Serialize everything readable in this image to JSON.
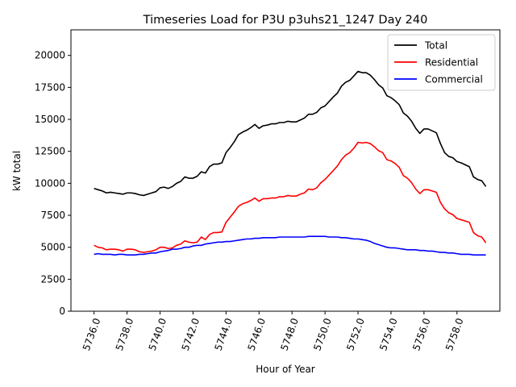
{
  "chart_data": {
    "type": "line",
    "title": "Timeseries Load for P3U p3uhs21_1247  Day 240",
    "xlabel": "Hour of Year",
    "ylabel": "kW total",
    "xlim": [
      5734.6,
      5760.6
    ],
    "ylim": [
      0,
      22000
    ],
    "xticks": [
      5736,
      5738,
      5740,
      5742,
      5744,
      5746,
      5748,
      5750,
      5752,
      5754,
      5756,
      5758
    ],
    "xtick_labels": [
      "5736.0",
      "5738.0",
      "5740.0",
      "5742.0",
      "5744.0",
      "5746.0",
      "5748.0",
      "5750.0",
      "5752.0",
      "5754.0",
      "5756.0",
      "5758.0"
    ],
    "yticks": [
      0,
      2500,
      5000,
      7500,
      10000,
      12500,
      15000,
      17500,
      20000
    ],
    "ytick_labels": [
      "0",
      "2500",
      "5000",
      "7500",
      "10000",
      "12500",
      "15000",
      "17500",
      "20000"
    ],
    "legend_position": "top-right",
    "x": [
      5736.0,
      5736.25,
      5736.5,
      5736.75,
      5737.0,
      5737.25,
      5737.5,
      5737.75,
      5738.0,
      5738.25,
      5738.5,
      5738.75,
      5739.0,
      5739.25,
      5739.5,
      5739.75,
      5740.0,
      5740.25,
      5740.5,
      5740.75,
      5741.0,
      5741.25,
      5741.5,
      5741.75,
      5742.0,
      5742.25,
      5742.5,
      5742.75,
      5743.0,
      5743.25,
      5743.5,
      5743.75,
      5744.0,
      5744.25,
      5744.5,
      5744.75,
      5745.0,
      5745.25,
      5745.5,
      5745.75,
      5746.0,
      5746.25,
      5746.5,
      5746.75,
      5747.0,
      5747.25,
      5747.5,
      5747.75,
      5748.0,
      5748.25,
      5748.5,
      5748.75,
      5749.0,
      5749.25,
      5749.5,
      5749.75,
      5750.0,
      5750.25,
      5750.5,
      5750.75,
      5751.0,
      5751.25,
      5751.5,
      5751.75,
      5752.0,
      5752.25,
      5752.5,
      5752.75,
      5753.0,
      5753.25,
      5753.5,
      5753.75,
      5754.0,
      5754.25,
      5754.5,
      5754.75,
      5755.0,
      5755.25,
      5755.5,
      5755.75,
      5756.0,
      5756.25,
      5756.5,
      5756.75,
      5757.0,
      5757.25,
      5757.5,
      5757.75,
      5758.0,
      5758.25,
      5758.5,
      5758.75,
      5759.0,
      5759.25,
      5759.5,
      5759.75
    ],
    "series": [
      {
        "name": "Total",
        "color": "#000000",
        "values": [
          9600,
          9500,
          9400,
          9250,
          9300,
          9250,
          9200,
          9150,
          9250,
          9250,
          9200,
          9100,
          9050,
          9150,
          9250,
          9350,
          9650,
          9700,
          9600,
          9750,
          10000,
          10150,
          10500,
          10400,
          10400,
          10550,
          10900,
          10800,
          11300,
          11500,
          11500,
          11600,
          12400,
          12800,
          13250,
          13800,
          14000,
          14150,
          14350,
          14600,
          14300,
          14500,
          14550,
          14650,
          14650,
          14750,
          14750,
          14850,
          14800,
          14800,
          14950,
          15100,
          15400,
          15400,
          15550,
          15900,
          16050,
          16400,
          16750,
          17050,
          17600,
          17900,
          18050,
          18400,
          18750,
          18650,
          18650,
          18450,
          18100,
          17700,
          17450,
          16850,
          16700,
          16450,
          16150,
          15500,
          15250,
          14850,
          14300,
          13900,
          14250,
          14250,
          14100,
          13950,
          13100,
          12400,
          12100,
          12000,
          11700,
          11600,
          11450,
          11300,
          10500,
          10300,
          10200,
          9750
        ]
      },
      {
        "name": "Residential",
        "color": "#ff0000",
        "values": [
          5150,
          5000,
          4950,
          4800,
          4850,
          4850,
          4800,
          4700,
          4850,
          4850,
          4800,
          4650,
          4600,
          4650,
          4700,
          4800,
          5000,
          5000,
          4900,
          4950,
          5150,
          5250,
          5500,
          5400,
          5350,
          5400,
          5800,
          5600,
          6000,
          6150,
          6150,
          6200,
          6950,
          7350,
          7750,
          8200,
          8400,
          8500,
          8650,
          8850,
          8600,
          8800,
          8800,
          8850,
          8850,
          8950,
          8950,
          9050,
          9000,
          9000,
          9150,
          9250,
          9550,
          9500,
          9650,
          10050,
          10300,
          10650,
          11000,
          11350,
          11850,
          12200,
          12400,
          12750,
          13200,
          13150,
          13200,
          13100,
          12850,
          12550,
          12400,
          11850,
          11750,
          11550,
          11250,
          10600,
          10400,
          10050,
          9550,
          9200,
          9500,
          9500,
          9400,
          9300,
          8500,
          8000,
          7700,
          7550,
          7250,
          7150,
          7050,
          6950,
          6150,
          5900,
          5800,
          5350
        ]
      },
      {
        "name": "Commercial",
        "color": "#0000ff",
        "values": [
          4450,
          4500,
          4450,
          4450,
          4450,
          4400,
          4450,
          4450,
          4400,
          4400,
          4400,
          4450,
          4450,
          4500,
          4550,
          4550,
          4650,
          4700,
          4750,
          4850,
          4850,
          4900,
          5000,
          5000,
          5100,
          5150,
          5150,
          5250,
          5300,
          5350,
          5400,
          5400,
          5450,
          5450,
          5500,
          5550,
          5600,
          5650,
          5650,
          5700,
          5700,
          5750,
          5750,
          5750,
          5750,
          5800,
          5800,
          5800,
          5800,
          5800,
          5800,
          5800,
          5850,
          5850,
          5850,
          5850,
          5850,
          5800,
          5800,
          5800,
          5750,
          5750,
          5700,
          5650,
          5650,
          5600,
          5550,
          5450,
          5300,
          5200,
          5100,
          5000,
          4950,
          4950,
          4900,
          4850,
          4800,
          4800,
          4800,
          4750,
          4750,
          4700,
          4700,
          4650,
          4600,
          4600,
          4550,
          4550,
          4500,
          4450,
          4450,
          4450,
          4400,
          4400,
          4400,
          4400
        ]
      }
    ]
  }
}
